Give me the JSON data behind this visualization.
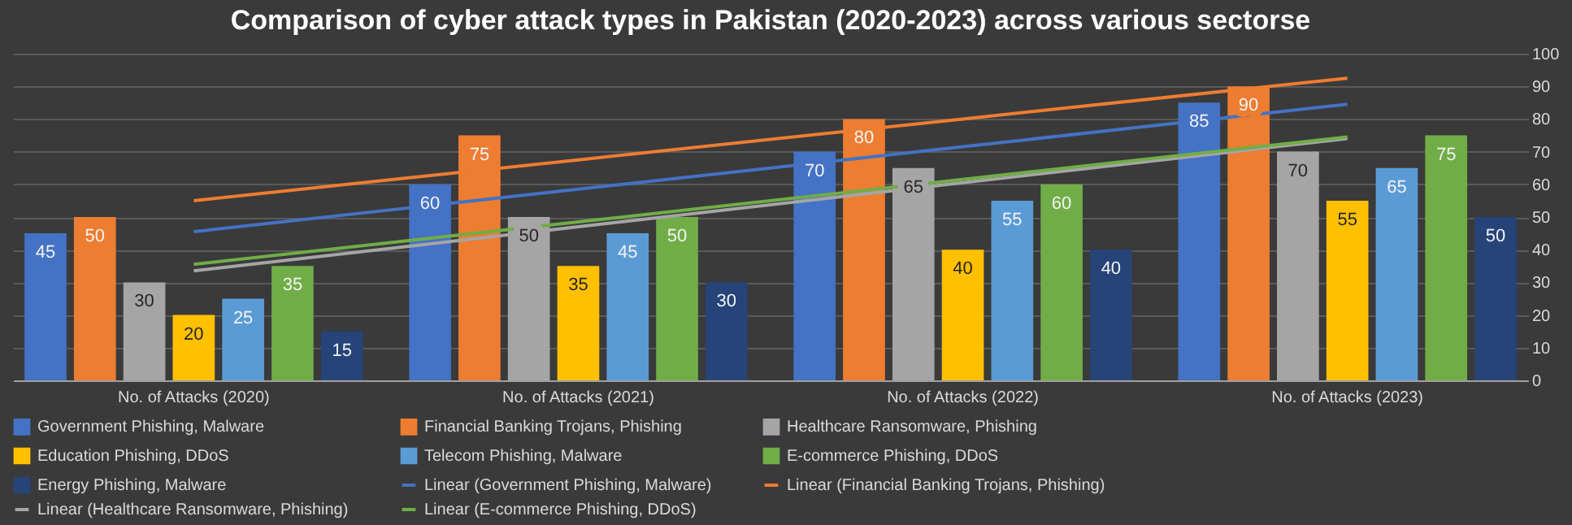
{
  "chart_data": {
    "type": "bar",
    "title": "Comparison of cyber attack types in Pakistan (2020-2023) across various sectorse",
    "categories": [
      "No. of Attacks (2020)",
      "No. of Attacks (2021)",
      "No. of Attacks (2022)",
      "No. of Attacks (2023)"
    ],
    "series": [
      {
        "name": "Government Phishing, Malware",
        "color": "#4472c4",
        "values": [
          45,
          60,
          70,
          85
        ],
        "value_labels": [
          "45",
          "60",
          "70",
          "85"
        ]
      },
      {
        "name": "Financial Banking Trojans, Phishing",
        "color": "#ed7d31",
        "values": [
          50,
          75,
          80,
          90
        ],
        "value_labels": [
          "50",
          "75",
          "80",
          "90"
        ]
      },
      {
        "name": "Healthcare Ransomware, Phishing",
        "color": "#a5a5a5",
        "values": [
          30,
          50,
          65,
          70
        ],
        "value_labels": [
          "30",
          "50",
          "65",
          "70"
        ]
      },
      {
        "name": "Education Phishing, DDoS",
        "color": "#ffc000",
        "values": [
          20,
          35,
          40,
          55
        ],
        "value_labels": [
          "20",
          "35",
          "40",
          "55"
        ]
      },
      {
        "name": "Telecom Phishing, Malware",
        "color": "#5b9bd5",
        "values": [
          25,
          45,
          55,
          65
        ],
        "value_labels": [
          "25",
          "45",
          "55",
          "65"
        ]
      },
      {
        "name": "E-commerce Phishing, DDoS",
        "color": "#70ad47",
        "values": [
          35,
          50,
          60,
          75
        ],
        "value_labels": [
          "35",
          "50",
          "60",
          "75"
        ]
      },
      {
        "name": "Energy Phishing, Malware",
        "color": "#264478",
        "values": [
          15,
          30,
          40,
          50
        ],
        "value_labels": [
          "15",
          "30",
          "40",
          "50"
        ]
      },
      {
        "name": "Linear (Government Phishing, Malware)",
        "type": "line",
        "color": "#4472c4",
        "x": [
          "No. of Attacks (2020)",
          "No. of Attacks (2021)",
          "No. of Attacks (2022)",
          "No. of Attacks (2023)"
        ],
        "values": [
          45.5,
          58.5,
          71.5,
          84.5
        ]
      },
      {
        "name": "Linear (Financial Banking Trojans, Phishing)",
        "type": "line",
        "color": "#ed7d31",
        "x": [
          "No. of Attacks (2020)",
          "No. of Attacks (2021)",
          "No. of Attacks (2022)",
          "No. of Attacks (2023)"
        ],
        "values": [
          55,
          67.5,
          80,
          92.5
        ]
      },
      {
        "name": "Linear (Healthcare Ransomware, Phishing)",
        "type": "line",
        "color": "#a5a5a5",
        "x": [
          "No. of Attacks (2020)",
          "No. of Attacks (2021)",
          "No. of Attacks (2022)",
          "No. of Attacks (2023)"
        ],
        "values": [
          33.5,
          47,
          60.5,
          74
        ]
      },
      {
        "name": "Linear (E-commerce Phishing, DDoS)",
        "type": "line",
        "color": "#70ad47",
        "x": [
          "No. of Attacks (2020)",
          "No. of Attacks (2021)",
          "No. of Attacks (2022)",
          "No. of Attacks (2023)"
        ],
        "values": [
          35.5,
          48.5,
          61.5,
          74.5
        ]
      }
    ],
    "ylim": [
      0,
      100
    ],
    "yticks": [
      0,
      10,
      20,
      30,
      40,
      50,
      60,
      70,
      80,
      90,
      100
    ],
    "grid": "y",
    "legend": "bottom"
  }
}
